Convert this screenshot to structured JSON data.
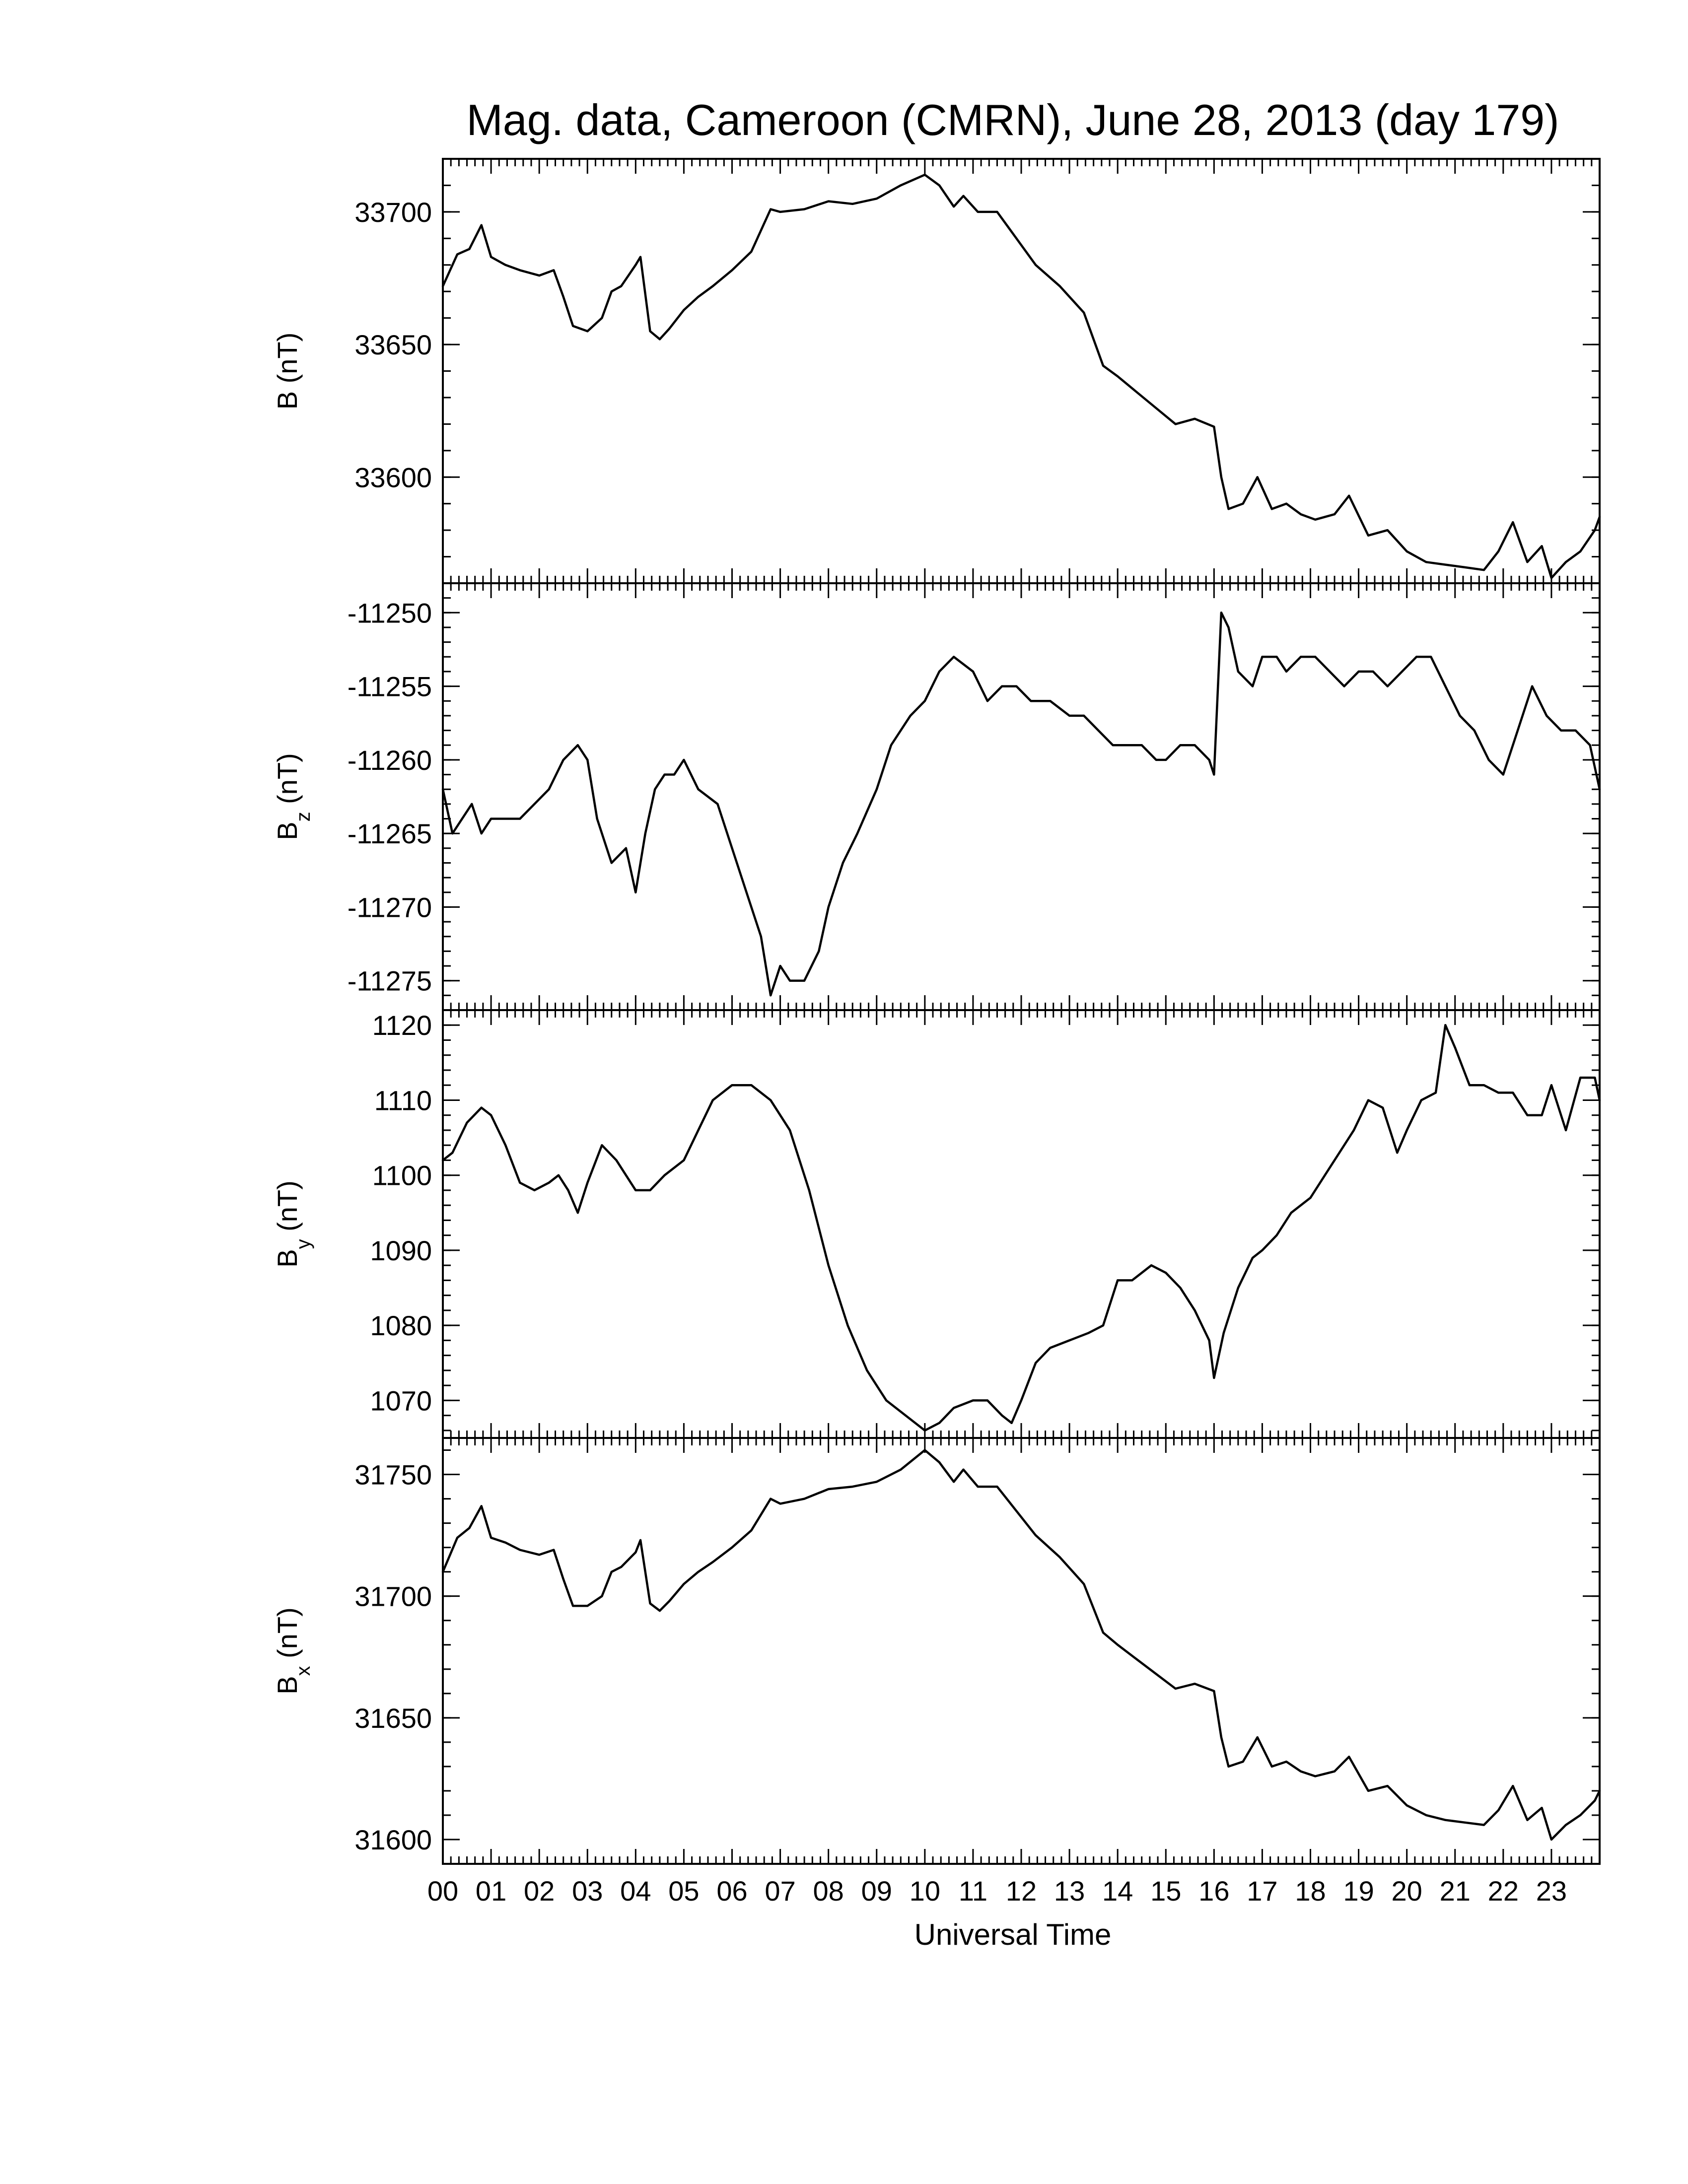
{
  "chart_data": {
    "type": "line",
    "title": "Mag. data, Cameroon (CMRN), June 28, 2013 (day 179)",
    "xlabel": "Universal Time",
    "x_unit": "hour",
    "x_ticks": [
      "00",
      "01",
      "02",
      "03",
      "04",
      "05",
      "06",
      "07",
      "08",
      "09",
      "10",
      "11",
      "12",
      "13",
      "14",
      "15",
      "16",
      "17",
      "18",
      "19",
      "20",
      "21",
      "22",
      "23"
    ],
    "xlim": [
      0,
      24
    ],
    "panels": [
      {
        "ylabel_main": "B",
        "ylabel_sub": "",
        "ylabel_unit": "(nT)",
        "ylim": [
          33560,
          33720
        ],
        "ytick_values": [
          33600,
          33650,
          33700
        ],
        "yticks": [
          "33600",
          "33650",
          "33700"
        ],
        "x": [
          0,
          0.3,
          0.55,
          0.8,
          1.0,
          1.3,
          1.6,
          2.0,
          2.3,
          2.5,
          2.7,
          3.0,
          3.3,
          3.5,
          3.7,
          4.0,
          4.1,
          4.3,
          4.5,
          4.7,
          5.0,
          5.3,
          5.6,
          6.0,
          6.4,
          6.8,
          7.0,
          7.5,
          8.0,
          8.5,
          9.0,
          9.5,
          10.0,
          10.3,
          10.6,
          10.8,
          11.1,
          11.5,
          11.9,
          12.3,
          12.8,
          13.3,
          13.7,
          14.0,
          14.4,
          14.8,
          15.2,
          15.6,
          16.0,
          16.15,
          16.3,
          16.6,
          16.9,
          17.2,
          17.5,
          17.8,
          18.1,
          18.5,
          18.8,
          19.2,
          19.6,
          20.0,
          20.4,
          20.8,
          21.2,
          21.6,
          21.9,
          22.2,
          22.5,
          22.8,
          23.0,
          23.3,
          23.6,
          23.9,
          24.0
        ],
        "values": [
          33672,
          33684,
          33686,
          33695,
          33683,
          33680,
          33678,
          33676,
          33678,
          33668,
          33657,
          33655,
          33660,
          33670,
          33672,
          33680,
          33683,
          33655,
          33652,
          33656,
          33663,
          33668,
          33672,
          33678,
          33685,
          33701,
          33700,
          33701,
          33704,
          33703,
          33705,
          33710,
          33714,
          33710,
          33702,
          33706,
          33700,
          33700,
          33690,
          33680,
          33672,
          33662,
          33642,
          33638,
          33632,
          33626,
          33620,
          33622,
          33619,
          33600,
          33588,
          33590,
          33600,
          33588,
          33590,
          33586,
          33584,
          33586,
          33593,
          33578,
          33580,
          33572,
          33568,
          33567,
          33566,
          33565,
          33572,
          33583,
          33568,
          33574,
          33562,
          33568,
          33572,
          33580,
          33585
        ]
      },
      {
        "ylabel_main": "B",
        "ylabel_sub": "z",
        "ylabel_unit": "(nT)",
        "ylim": [
          -11277,
          -11248
        ],
        "ytick_values": [
          -11275,
          -11270,
          -11265,
          -11260,
          -11255,
          -11250
        ],
        "yticks": [
          "-11275",
          "-11270",
          "-11265",
          "-11260",
          "-11255",
          "-11250"
        ],
        "x": [
          0,
          0.2,
          0.4,
          0.6,
          0.8,
          1.0,
          1.3,
          1.6,
          1.9,
          2.2,
          2.5,
          2.8,
          3.0,
          3.2,
          3.5,
          3.8,
          4.0,
          4.2,
          4.4,
          4.6,
          4.8,
          5.0,
          5.3,
          5.7,
          6.0,
          6.3,
          6.6,
          6.8,
          7.0,
          7.2,
          7.5,
          7.8,
          8.0,
          8.3,
          8.6,
          9.0,
          9.3,
          9.7,
          10.0,
          10.3,
          10.6,
          11.0,
          11.3,
          11.6,
          11.9,
          12.2,
          12.6,
          13.0,
          13.3,
          13.6,
          13.9,
          14.2,
          14.5,
          14.8,
          15.0,
          15.3,
          15.6,
          15.9,
          16.0,
          16.15,
          16.3,
          16.5,
          16.8,
          17.0,
          17.3,
          17.5,
          17.8,
          18.1,
          18.4,
          18.7,
          19.0,
          19.3,
          19.6,
          19.9,
          20.2,
          20.5,
          20.8,
          21.1,
          21.4,
          21.7,
          22.0,
          22.3,
          22.6,
          22.9,
          23.2,
          23.5,
          23.8,
          24.0
        ],
        "values": [
          -11262,
          -11265,
          -11264,
          -11263,
          -11265,
          -11264,
          -11264,
          -11264,
          -11263,
          -11262,
          -11260,
          -11259,
          -11260,
          -11264,
          -11267,
          -11266,
          -11269,
          -11265,
          -11262,
          -11261,
          -11261,
          -11260,
          -11262,
          -11263,
          -11266,
          -11269,
          -11272,
          -11276,
          -11274,
          -11275,
          -11275,
          -11273,
          -11270,
          -11267,
          -11265,
          -11262,
          -11259,
          -11257,
          -11256,
          -11254,
          -11253,
          -11254,
          -11256,
          -11255,
          -11255,
          -11256,
          -11256,
          -11257,
          -11257,
          -11258,
          -11259,
          -11259,
          -11259,
          -11260,
          -11260,
          -11259,
          -11259,
          -11260,
          -11261,
          -11250,
          -11251,
          -11254,
          -11255,
          -11253,
          -11253,
          -11254,
          -11253,
          -11253,
          -11254,
          -11255,
          -11254,
          -11254,
          -11255,
          -11254,
          -11253,
          -11253,
          -11255,
          -11257,
          -11258,
          -11260,
          -11261,
          -11258,
          -11255,
          -11257,
          -11258,
          -11258,
          -11259,
          -11262
        ]
      },
      {
        "ylabel_main": "B",
        "ylabel_sub": "y",
        "ylabel_unit": "(nT)",
        "ylim": [
          1065,
          1122
        ],
        "ytick_values": [
          1070,
          1080,
          1090,
          1100,
          1110,
          1120
        ],
        "yticks": [
          "1070",
          "1080",
          "1090",
          "1100",
          "1110",
          "1120"
        ],
        "x": [
          0,
          0.2,
          0.5,
          0.8,
          1.0,
          1.3,
          1.6,
          1.9,
          2.2,
          2.4,
          2.6,
          2.8,
          3.0,
          3.3,
          3.6,
          4.0,
          4.3,
          4.6,
          5.0,
          5.3,
          5.6,
          6.0,
          6.4,
          6.8,
          7.2,
          7.6,
          8.0,
          8.4,
          8.8,
          9.2,
          9.6,
          10.0,
          10.3,
          10.6,
          11.0,
          11.3,
          11.6,
          11.8,
          12.0,
          12.3,
          12.6,
          13.0,
          13.4,
          13.7,
          14.0,
          14.3,
          14.7,
          15.0,
          15.3,
          15.6,
          15.9,
          16.0,
          16.2,
          16.5,
          16.8,
          17.0,
          17.3,
          17.6,
          18.0,
          18.3,
          18.6,
          18.9,
          19.2,
          19.5,
          19.8,
          20.0,
          20.3,
          20.6,
          20.8,
          21.0,
          21.3,
          21.6,
          21.9,
          22.2,
          22.5,
          22.8,
          23.0,
          23.3,
          23.6,
          23.9,
          24.0
        ],
        "values": [
          1102,
          1103,
          1107,
          1109,
          1108,
          1104,
          1099,
          1098,
          1099,
          1100,
          1098,
          1095,
          1099,
          1104,
          1102,
          1098,
          1098,
          1100,
          1102,
          1106,
          1110,
          1112,
          1112,
          1110,
          1106,
          1098,
          1088,
          1080,
          1074,
          1070,
          1068,
          1066,
          1067,
          1069,
          1070,
          1070,
          1068,
          1067,
          1070,
          1075,
          1077,
          1078,
          1079,
          1080,
          1086,
          1086,
          1088,
          1087,
          1085,
          1082,
          1078,
          1073,
          1079,
          1085,
          1089,
          1090,
          1092,
          1095,
          1097,
          1100,
          1103,
          1106,
          1110,
          1109,
          1103,
          1106,
          1110,
          1111,
          1120,
          1117,
          1112,
          1112,
          1111,
          1111,
          1108,
          1108,
          1112,
          1106,
          1113,
          1113,
          1110
        ]
      },
      {
        "ylabel_main": "B",
        "ylabel_sub": "x",
        "ylabel_unit": "(nT)",
        "ylim": [
          31590,
          31765
        ],
        "ytick_values": [
          31600,
          31650,
          31700,
          31750
        ],
        "yticks": [
          "31600",
          "31650",
          "31700",
          "31750"
        ],
        "x": [
          0,
          0.3,
          0.55,
          0.8,
          1.0,
          1.3,
          1.6,
          2.0,
          2.3,
          2.5,
          2.7,
          3.0,
          3.3,
          3.5,
          3.7,
          4.0,
          4.1,
          4.3,
          4.5,
          4.7,
          5.0,
          5.3,
          5.6,
          6.0,
          6.4,
          6.8,
          7.0,
          7.5,
          8.0,
          8.5,
          9.0,
          9.5,
          10.0,
          10.3,
          10.6,
          10.8,
          11.1,
          11.5,
          11.9,
          12.3,
          12.8,
          13.3,
          13.7,
          14.0,
          14.4,
          14.8,
          15.2,
          15.6,
          16.0,
          16.15,
          16.3,
          16.6,
          16.9,
          17.2,
          17.5,
          17.8,
          18.1,
          18.5,
          18.8,
          19.2,
          19.6,
          20.0,
          20.4,
          20.8,
          21.2,
          21.6,
          21.9,
          22.2,
          22.5,
          22.8,
          23.0,
          23.3,
          23.6,
          23.9,
          24.0
        ],
        "values": [
          31710,
          31724,
          31728,
          31737,
          31724,
          31722,
          31719,
          31717,
          31719,
          31707,
          31696,
          31696,
          31700,
          31710,
          31712,
          31718,
          31723,
          31697,
          31694,
          31698,
          31705,
          31710,
          31714,
          31720,
          31727,
          31740,
          31738,
          31740,
          31744,
          31745,
          31747,
          31752,
          31760,
          31755,
          31747,
          31752,
          31745,
          31745,
          31735,
          31725,
          31716,
          31705,
          31685,
          31680,
          31674,
          31668,
          31662,
          31664,
          31661,
          31642,
          31630,
          31632,
          31642,
          31630,
          31632,
          31628,
          31626,
          31628,
          31634,
          31620,
          31622,
          31614,
          31610,
          31608,
          31607,
          31606,
          31612,
          31622,
          31608,
          31613,
          31600,
          31606,
          31610,
          31616,
          31620
        ]
      }
    ]
  }
}
